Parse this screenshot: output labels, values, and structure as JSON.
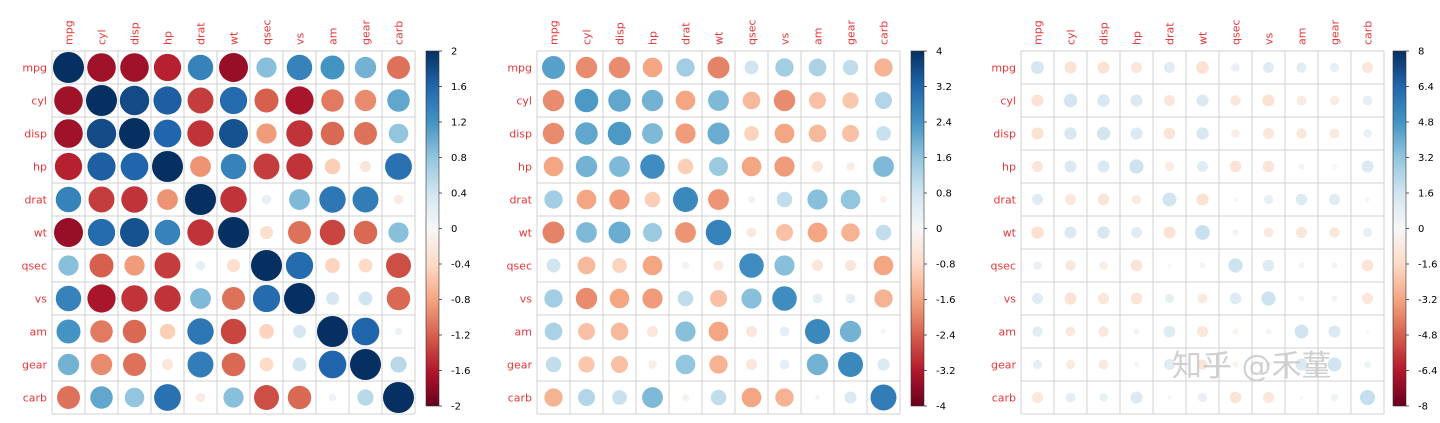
{
  "chart_data": [
    {
      "type": "heatmap",
      "title": "",
      "variables": [
        "mpg",
        "cyl",
        "disp",
        "hp",
        "drat",
        "wt",
        "qsec",
        "vs",
        "am",
        "gear",
        "carb"
      ],
      "matrix": [
        [
          2.0,
          -1.7,
          -1.7,
          -1.55,
          1.35,
          -1.75,
          0.85,
          1.35,
          1.2,
          0.95,
          -1.1
        ],
        [
          -1.7,
          2.0,
          1.8,
          1.65,
          -1.4,
          1.55,
          -1.2,
          -1.65,
          -1.05,
          -0.95,
          1.05
        ],
        [
          -1.7,
          1.8,
          2.0,
          1.6,
          -1.45,
          1.75,
          -0.85,
          -1.45,
          -1.15,
          -1.1,
          0.8
        ],
        [
          -1.55,
          1.65,
          1.6,
          2.0,
          -0.9,
          1.35,
          -1.4,
          -1.45,
          -0.5,
          -0.25,
          1.5
        ],
        [
          1.35,
          -1.4,
          -1.45,
          -0.9,
          2.0,
          -1.45,
          0.18,
          0.9,
          1.45,
          1.4,
          -0.18
        ],
        [
          -1.75,
          1.55,
          1.75,
          1.35,
          -1.45,
          2.0,
          -0.35,
          -1.1,
          -1.35,
          -1.15,
          0.85
        ],
        [
          0.85,
          -1.2,
          -0.85,
          -1.4,
          0.18,
          -0.35,
          2.0,
          1.55,
          -0.45,
          -0.4,
          -1.3
        ],
        [
          1.35,
          -1.65,
          -1.45,
          -1.45,
          0.9,
          -1.1,
          1.55,
          2.0,
          0.35,
          0.4,
          -1.15
        ],
        [
          1.2,
          -1.05,
          -1.15,
          -0.5,
          1.45,
          -1.35,
          -0.45,
          0.35,
          2.0,
          1.6,
          0.12
        ],
        [
          0.95,
          -0.95,
          -1.1,
          -0.25,
          1.4,
          -1.15,
          -0.4,
          0.4,
          1.6,
          2.0,
          0.55
        ],
        [
          -1.1,
          1.05,
          0.8,
          1.5,
          -0.18,
          0.85,
          -1.3,
          -1.15,
          0.12,
          0.55,
          2.0
        ]
      ],
      "colorbar": {
        "min": -2,
        "max": 2,
        "tick_labels": [
          "2",
          "1.6",
          "1.2",
          "0.8",
          "0.4",
          "0",
          "-0.4",
          "-0.8",
          "-1.2",
          "-1.6",
          "-2"
        ]
      }
    },
    {
      "type": "heatmap",
      "title": "",
      "variables": [
        "mpg",
        "cyl",
        "disp",
        "hp",
        "drat",
        "wt",
        "qsec",
        "vs",
        "am",
        "gear",
        "carb"
      ],
      "matrix": [
        [
          2.2,
          -1.9,
          -1.9,
          -1.6,
          1.4,
          -2.0,
          0.8,
          1.4,
          1.3,
          1.0,
          -1.4
        ],
        [
          -1.9,
          2.3,
          2.1,
          1.9,
          -1.6,
          1.8,
          -1.3,
          -1.9,
          -1.2,
          -1.1,
          1.2
        ],
        [
          -1.9,
          2.1,
          2.3,
          1.8,
          -1.7,
          2.0,
          -0.9,
          -1.6,
          -1.3,
          -1.2,
          0.9
        ],
        [
          -1.6,
          1.9,
          1.8,
          2.5,
          -1.0,
          1.5,
          -1.6,
          -1.7,
          -0.5,
          -0.3,
          1.8
        ],
        [
          1.4,
          -1.6,
          -1.7,
          -1.0,
          2.6,
          -1.8,
          0.2,
          1.0,
          1.7,
          1.6,
          -0.2
        ],
        [
          -2.0,
          1.8,
          2.0,
          1.5,
          -1.8,
          2.7,
          -0.4,
          -1.2,
          -1.6,
          -1.4,
          1.0
        ],
        [
          0.8,
          -1.3,
          -0.9,
          -1.6,
          0.2,
          -0.4,
          2.5,
          1.7,
          -0.5,
          -0.5,
          -1.6
        ],
        [
          1.4,
          -1.9,
          -1.6,
          -1.7,
          1.0,
          -1.2,
          1.7,
          2.5,
          0.4,
          0.4,
          -1.4
        ],
        [
          1.3,
          -1.2,
          -1.3,
          -0.5,
          1.7,
          -1.6,
          -0.5,
          0.4,
          2.6,
          1.9,
          0.1
        ],
        [
          1.0,
          -1.1,
          -1.2,
          -0.3,
          1.6,
          -1.4,
          -0.5,
          0.4,
          1.9,
          2.6,
          0.6
        ],
        [
          -1.4,
          1.2,
          0.9,
          1.8,
          -0.2,
          1.0,
          -1.6,
          -1.4,
          0.1,
          0.6,
          2.8
        ]
      ],
      "colorbar": {
        "min": -4,
        "max": 4,
        "tick_labels": [
          "4",
          "3.2",
          "2.4",
          "1.6",
          "0.8",
          "0",
          "-0.8",
          "-1.6",
          "-2.4",
          "-3.2",
          "-4"
        ]
      }
    },
    {
      "type": "heatmap",
      "title": "",
      "variables": [
        "mpg",
        "cyl",
        "disp",
        "hp",
        "drat",
        "wt",
        "qsec",
        "vs",
        "am",
        "gear",
        "carb"
      ],
      "matrix": [
        [
          1.4,
          -1.2,
          -1.2,
          -1.0,
          1.0,
          -1.3,
          0.6,
          1.0,
          0.9,
          0.7,
          -1.0
        ],
        [
          -1.2,
          1.5,
          1.3,
          1.2,
          -1.0,
          1.2,
          -0.9,
          -1.2,
          -0.8,
          -0.7,
          0.8
        ],
        [
          -1.2,
          1.3,
          1.5,
          1.2,
          -1.1,
          1.3,
          -0.6,
          -1.0,
          -0.9,
          -0.8,
          0.6
        ],
        [
          -1.0,
          1.2,
          1.2,
          1.7,
          -0.7,
          1.0,
          -1.1,
          -1.1,
          -0.3,
          -0.2,
          1.2
        ],
        [
          1.0,
          -1.0,
          -1.1,
          -0.7,
          1.6,
          -1.2,
          0.15,
          0.7,
          1.1,
          1.0,
          -0.15
        ],
        [
          -1.3,
          1.2,
          1.3,
          1.0,
          -1.2,
          1.8,
          -0.3,
          -0.8,
          -1.0,
          -0.9,
          0.7
        ],
        [
          0.6,
          -0.9,
          -0.6,
          -1.1,
          0.15,
          -0.3,
          1.7,
          1.1,
          -0.3,
          -0.3,
          -1.1
        ],
        [
          1.0,
          -1.2,
          -1.0,
          -1.1,
          0.7,
          -0.8,
          1.1,
          1.7,
          0.3,
          0.3,
          -1.0
        ],
        [
          0.9,
          -0.8,
          -0.9,
          -0.3,
          1.1,
          -1.0,
          -0.3,
          0.3,
          1.6,
          1.2,
          0.1
        ],
        [
          0.7,
          -0.7,
          -0.8,
          -0.2,
          1.0,
          -0.9,
          -0.3,
          0.3,
          1.2,
          1.6,
          0.4
        ],
        [
          -1.0,
          0.8,
          0.6,
          1.2,
          -0.15,
          0.7,
          -1.1,
          -1.0,
          0.1,
          0.4,
          1.9
        ]
      ],
      "colorbar": {
        "min": -8,
        "max": 8,
        "tick_labels": [
          "8",
          "6.4",
          "4.8",
          "3.2",
          "1.6",
          "0",
          "-1.6",
          "-3.2",
          "-4.8",
          "-6.4",
          "-8"
        ]
      }
    }
  ],
  "watermark": "知乎 @禾蓳"
}
